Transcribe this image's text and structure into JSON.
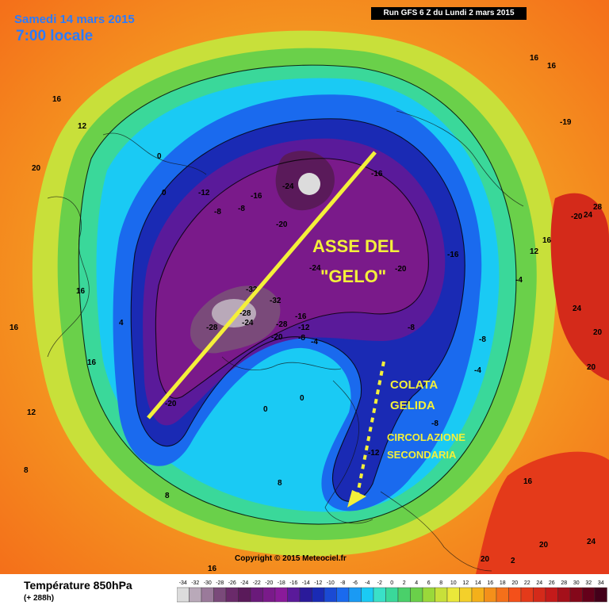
{
  "header": {
    "date": "Samedi 14 mars 2015",
    "time": "7:00 locale",
    "run": "Run GFS 6 Z du Lundi 2 mars 2015"
  },
  "map": {
    "copyright": "Copyright © 2015 Meteociel.fr",
    "annotations": {
      "axis_label_1": "ASSE DEL",
      "axis_label_2": "\"GELO\"",
      "flow_label_1": "COLATA",
      "flow_label_2": "GELIDA",
      "circ_label_1": "CIRCOLAZIONE",
      "circ_label_2": "SECONDARIA"
    },
    "contour_labels": [
      "-24",
      "-28",
      "-32",
      "-20",
      "-16",
      "-12",
      "-8",
      "-4",
      "0",
      "8",
      "12",
      "16",
      "20",
      "24"
    ],
    "annotation_color": "#f4f03a"
  },
  "legend": {
    "title": "Température 850hPa",
    "subtitle": "(+ 288h)",
    "scale_values": [
      "-34",
      "-32",
      "-30",
      "-28",
      "-26",
      "-24",
      "-22",
      "-20",
      "-18",
      "-16",
      "-14",
      "-12",
      "-10",
      "-8",
      "-6",
      "-4",
      "-2",
      "0",
      "2",
      "4",
      "6",
      "8",
      "10",
      "12",
      "14",
      "16",
      "18",
      "20",
      "22",
      "24",
      "26",
      "28",
      "30",
      "32",
      "34"
    ],
    "scale_colors": [
      "#dcdcdc",
      "#b9a9b9",
      "#9a7a9a",
      "#7a4a7a",
      "#6a2a6a",
      "#5a1a5a",
      "#6a1a7a",
      "#7a1a8a",
      "#8a1a9a",
      "#5a1a9a",
      "#2a1a9a",
      "#1a2ab4",
      "#1a4ad4",
      "#1a6aee",
      "#1a9af4",
      "#1acaf4",
      "#3ae0c8",
      "#3ad89a",
      "#4ad06a",
      "#6ad04a",
      "#9ad83a",
      "#c8e03a",
      "#eae83a",
      "#f4d02a",
      "#f4b01a",
      "#f4901a",
      "#f4701a",
      "#f4501a",
      "#e43a1a",
      "#d42a1a",
      "#c41a1a",
      "#a4101a",
      "#84081a",
      "#64001a",
      "#44001a"
    ]
  }
}
